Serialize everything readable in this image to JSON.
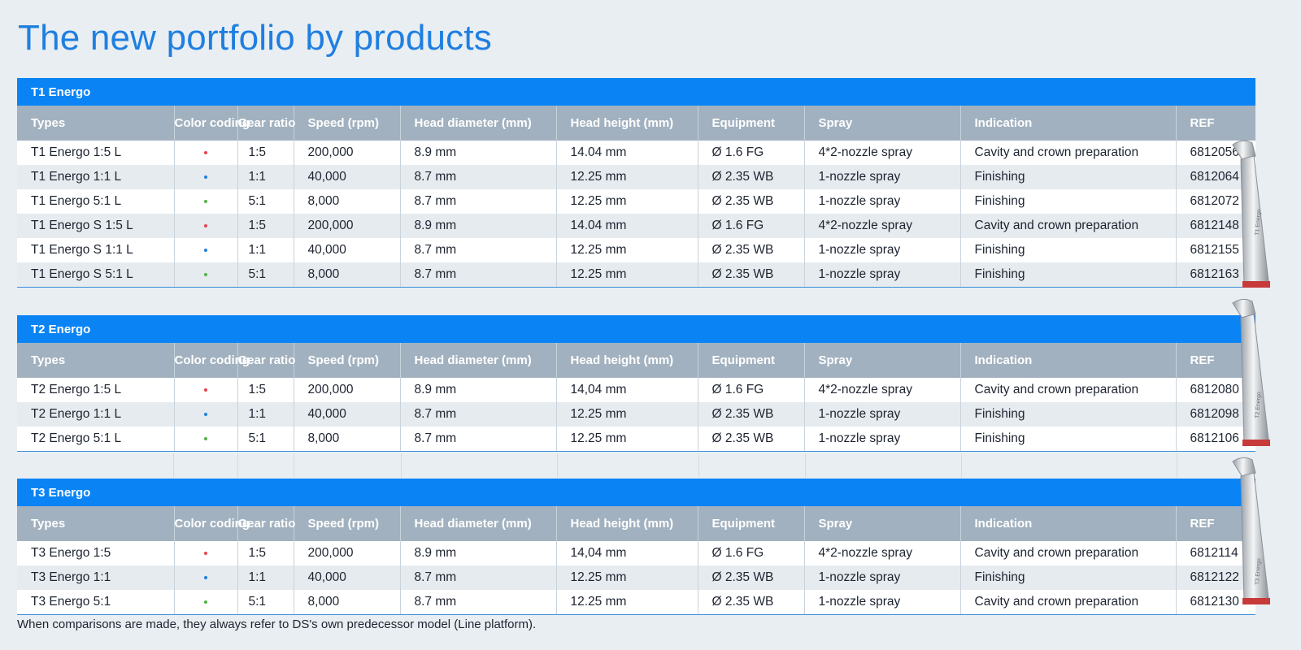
{
  "title": "The new portfolio by products",
  "columns": [
    "Types",
    "Color coding",
    "Gear ratio",
    "Speed (rpm)",
    "Head diameter (mm)",
    "Head height (mm)",
    "Equipment",
    "Spray",
    "Indication",
    "REF"
  ],
  "colors": {
    "red": "#e8434d",
    "blue": "#1f7fe0",
    "green": "#52b146"
  },
  "tables": [
    {
      "name": "T1 Energo",
      "rows": [
        {
          "type": "T1 Energo 1:5 L",
          "color": "red",
          "gear": "1:5",
          "speed": "200,000",
          "head_diameter": "8.9 mm",
          "head_height": "14.04 mm",
          "equipment": "Ø 1.6 FG",
          "spray": "4*2-nozzle spray",
          "indication": "Cavity and crown preparation",
          "ref": "6812056"
        },
        {
          "type": "T1 Energo 1:1 L",
          "color": "blue",
          "gear": "1:1",
          "speed": "40,000",
          "head_diameter": "8.7 mm",
          "head_height": "12.25 mm",
          "equipment": "Ø 2.35 WB",
          "spray": "1-nozzle spray",
          "indication": "Finishing",
          "ref": "6812064"
        },
        {
          "type": "T1 Energo 5:1 L",
          "color": "green",
          "gear": "5:1",
          "speed": "8,000",
          "head_diameter": "8.7 mm",
          "head_height": "12.25 mm",
          "equipment": "Ø 2.35 WB",
          "spray": "1-nozzle spray",
          "indication": "Finishing",
          "ref": "6812072"
        },
        {
          "type": "T1 Energo S 1:5 L",
          "color": "red",
          "gear": "1:5",
          "speed": "200,000",
          "head_diameter": "8.9 mm",
          "head_height": "14.04 mm",
          "equipment": "Ø 1.6 FG",
          "spray": "4*2-nozzle spray",
          "indication": "Cavity and crown preparation",
          "ref": "6812148"
        },
        {
          "type": "T1 Energo S 1:1 L",
          "color": "blue",
          "gear": "1:1",
          "speed": "40,000",
          "head_diameter": "8.7 mm",
          "head_height": "12.25 mm",
          "equipment": "Ø 2.35 WB",
          "spray": "1-nozzle spray",
          "indication": "Finishing",
          "ref": "6812155"
        },
        {
          "type": "T1 Energo S 5:1 L",
          "color": "green",
          "gear": "5:1",
          "speed": "8,000",
          "head_diameter": "8.7 mm",
          "head_height": "12.25 mm",
          "equipment": "Ø 2.35 WB",
          "spray": "1-nozzle spray",
          "indication": "Finishing",
          "ref": "6812163"
        }
      ]
    },
    {
      "name": "T2 Energo",
      "rows": [
        {
          "type": "T2 Energo 1:5 L",
          "color": "red",
          "gear": "1:5",
          "speed": "200,000",
          "head_diameter": "8.9 mm",
          "head_height": "14,04 mm",
          "equipment": "Ø 1.6 FG",
          "spray": "4*2-nozzle spray",
          "indication": "Cavity and crown preparation",
          "ref": "6812080"
        },
        {
          "type": "T2 Energo 1:1 L",
          "color": "blue",
          "gear": "1:1",
          "speed": "40,000",
          "head_diameter": "8.7 mm",
          "head_height": "12.25 mm",
          "equipment": "Ø 2.35 WB",
          "spray": "1-nozzle spray",
          "indication": "Finishing",
          "ref": "6812098"
        },
        {
          "type": "T2 Energo 5:1 L",
          "color": "green",
          "gear": "5:1",
          "speed": "8,000",
          "head_diameter": "8.7 mm",
          "head_height": "12.25 mm",
          "equipment": "Ø 2.35 WB",
          "spray": "1-nozzle spray",
          "indication": "Finishing",
          "ref": "6812106"
        }
      ]
    },
    {
      "name": "T3 Energo",
      "rows": [
        {
          "type": "T3 Energo 1:5",
          "color": "red",
          "gear": "1:5",
          "speed": "200,000",
          "head_diameter": "8.9 mm",
          "head_height": "14,04 mm",
          "equipment": "Ø 1.6 FG",
          "spray": "4*2-nozzle spray",
          "indication": "Cavity and crown preparation",
          "ref": "6812114"
        },
        {
          "type": "T3 Energo 1:1",
          "color": "blue",
          "gear": "1:1",
          "speed": "40,000",
          "head_diameter": "8.7 mm",
          "head_height": "12.25 mm",
          "equipment": "Ø 2.35 WB",
          "spray": "1-nozzle spray",
          "indication": "Finishing",
          "ref": "6812122"
        },
        {
          "type": "T3 Energo 5:1",
          "color": "green",
          "gear": "5:1",
          "speed": "8,000",
          "head_diameter": "8.7 mm",
          "head_height": "12.25 mm",
          "equipment": "Ø 2.35 WB",
          "spray": "1-nozzle spray",
          "indication": "Cavity and crown preparation",
          "ref": "6812130"
        }
      ]
    }
  ],
  "handpiece_labels": [
    "T1 Energo",
    "T2 Energo",
    "T3 Energo"
  ],
  "footnote": "When comparisons are made, they always refer to DS's own predecessor model (Line platform)."
}
